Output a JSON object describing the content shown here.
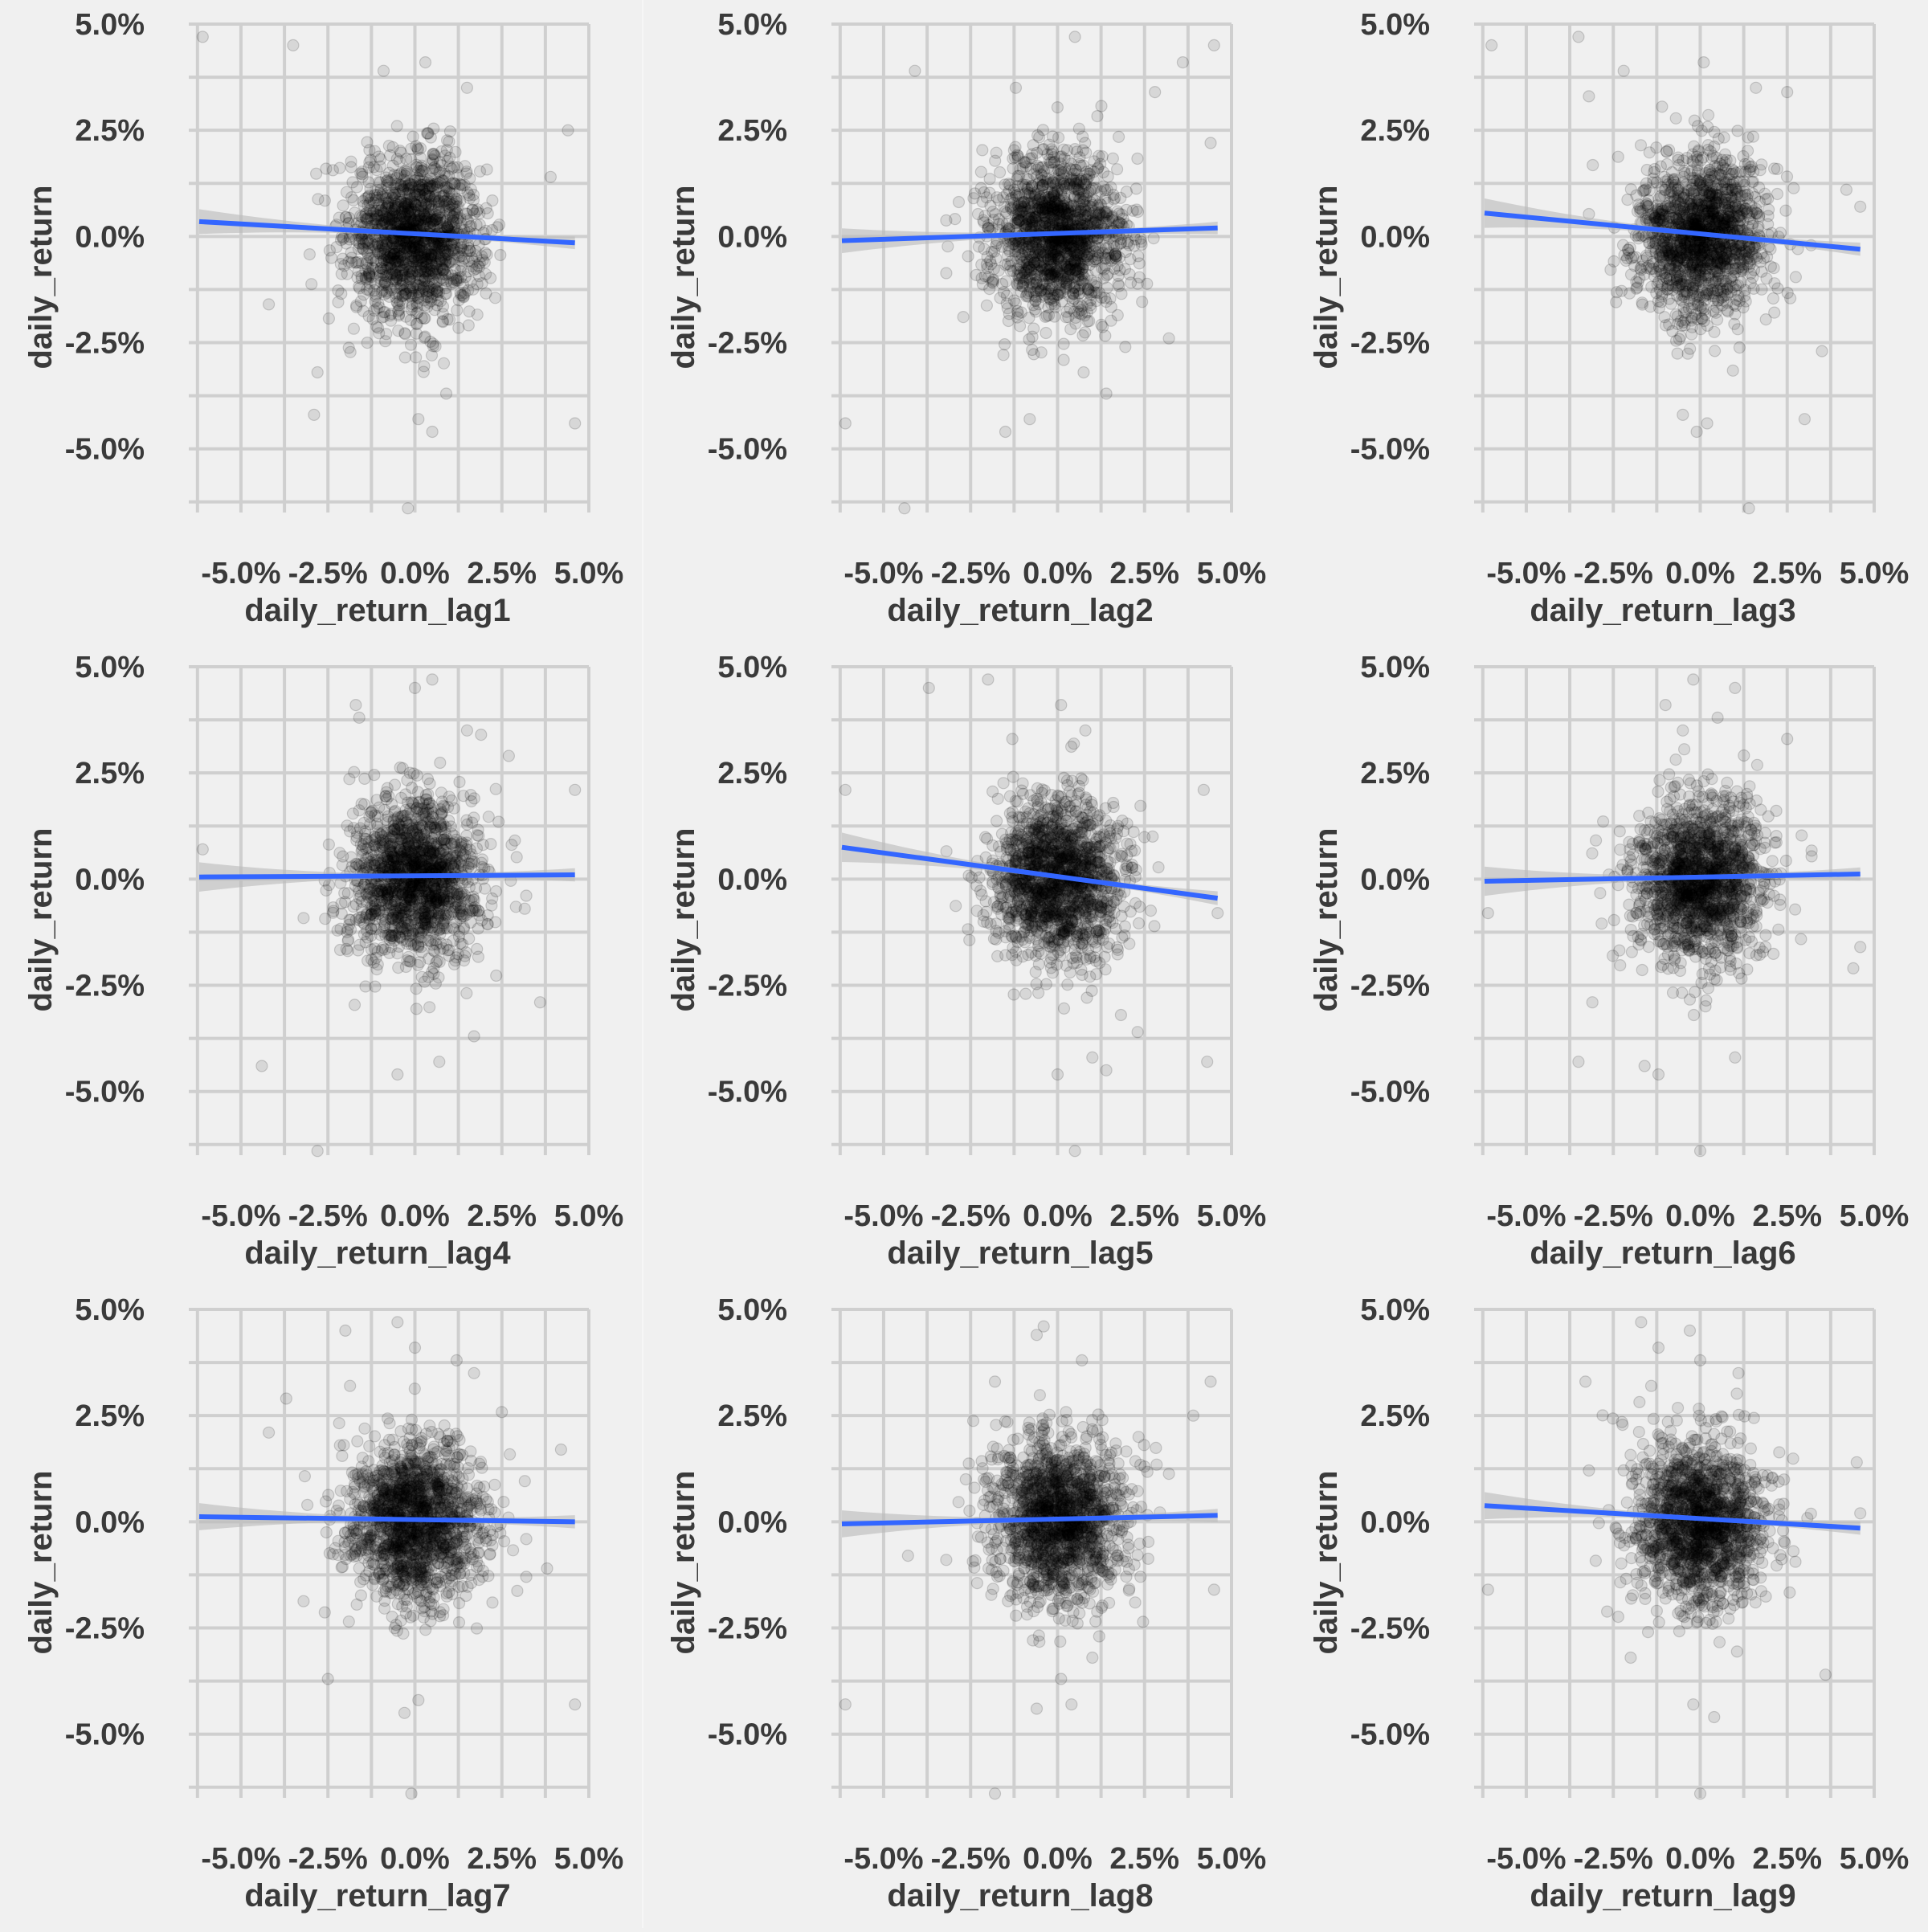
{
  "colors": {
    "background": "#f0f0f0",
    "grid": "#cfcfcf",
    "point": "#000000",
    "fit_line": "#3366ff",
    "confidence_band": "#b9b9b9",
    "text": "#3a3a3a"
  },
  "y_ticks": [
    "5.0%",
    "2.5%",
    "0.0%",
    "-2.5%",
    "-5.0%"
  ],
  "x_ticks": [
    "-5.0%",
    "-2.5%",
    "0.0%",
    "2.5%",
    "5.0%"
  ],
  "chart_data": [
    {
      "type": "scatter",
      "xlabel": "daily_return_lag1",
      "ylabel": "daily_return",
      "xlim": [
        -6.5,
        5.0
      ],
      "ylim": [
        -6.5,
        5.0
      ],
      "grid": true,
      "smooth": "lm",
      "fit_line": {
        "x": [
          -6.2,
          4.6
        ],
        "y": [
          0.35,
          -0.15
        ]
      },
      "band_halfwidth": [
        0.18,
        0.14
      ],
      "n_points": 1500,
      "spread": 0.95,
      "outliers": [
        [
          -6.1,
          4.7
        ],
        [
          -3.5,
          4.5
        ],
        [
          -0.9,
          3.9
        ],
        [
          0.3,
          4.1
        ],
        [
          1.5,
          3.5
        ],
        [
          -4.2,
          -1.6
        ],
        [
          -2.8,
          -3.2
        ],
        [
          0.9,
          -3.7
        ],
        [
          0.5,
          -4.6
        ],
        [
          0.1,
          -4.3
        ],
        [
          -0.2,
          -6.4
        ],
        [
          4.6,
          -4.4
        ],
        [
          3.9,
          1.4
        ],
        [
          4.4,
          2.5
        ],
        [
          -2.9,
          -4.2
        ]
      ]
    },
    {
      "type": "scatter",
      "xlabel": "daily_return_lag2",
      "ylabel": "daily_return",
      "xlim": [
        -6.5,
        5.0
      ],
      "ylim": [
        -6.5,
        5.0
      ],
      "grid": true,
      "smooth": "lm",
      "fit_line": {
        "x": [
          -6.2,
          4.6
        ],
        "y": [
          -0.1,
          0.2
        ]
      },
      "band_halfwidth": [
        0.18,
        0.14
      ],
      "n_points": 1500,
      "spread": 0.95,
      "outliers": [
        [
          -6.1,
          -4.4
        ],
        [
          -4.1,
          3.9
        ],
        [
          -4.4,
          -6.4
        ],
        [
          -1.5,
          -4.6
        ],
        [
          -0.8,
          -4.3
        ],
        [
          0.5,
          4.7
        ],
        [
          1.4,
          -3.7
        ],
        [
          3.6,
          4.1
        ],
        [
          4.5,
          4.5
        ],
        [
          4.4,
          2.2
        ],
        [
          3.2,
          -2.4
        ],
        [
          2.8,
          3.4
        ],
        [
          -1.2,
          3.5
        ]
      ]
    },
    {
      "type": "scatter",
      "xlabel": "daily_return_lag3",
      "ylabel": "daily_return",
      "xlim": [
        -6.5,
        5.0
      ],
      "ylim": [
        -6.5,
        5.0
      ],
      "grid": true,
      "smooth": "lm",
      "fit_line": {
        "x": [
          -6.2,
          4.6
        ],
        "y": [
          0.55,
          -0.3
        ]
      },
      "band_halfwidth": [
        0.22,
        0.15
      ],
      "n_points": 1500,
      "spread": 0.95,
      "outliers": [
        [
          -6.0,
          4.5
        ],
        [
          -3.5,
          4.7
        ],
        [
          -3.2,
          3.3
        ],
        [
          -2.2,
          3.9
        ],
        [
          0.1,
          4.1
        ],
        [
          1.6,
          3.5
        ],
        [
          2.5,
          3.4
        ],
        [
          -0.5,
          -4.2
        ],
        [
          0.2,
          -4.4
        ],
        [
          -0.1,
          -4.6
        ],
        [
          1.4,
          -6.4
        ],
        [
          3.5,
          -2.7
        ],
        [
          3.0,
          -4.3
        ],
        [
          4.6,
          0.7
        ],
        [
          4.2,
          1.1
        ]
      ]
    },
    {
      "type": "scatter",
      "xlabel": "daily_return_lag4",
      "ylabel": "daily_return",
      "xlim": [
        -6.5,
        5.0
      ],
      "ylim": [
        -6.5,
        5.0
      ],
      "grid": true,
      "smooth": "lm",
      "fit_line": {
        "x": [
          -6.2,
          4.6
        ],
        "y": [
          0.05,
          0.1
        ]
      },
      "band_halfwidth": [
        0.22,
        0.15
      ],
      "n_points": 1500,
      "spread": 0.95,
      "outliers": [
        [
          -6.1,
          0.7
        ],
        [
          -4.4,
          -4.4
        ],
        [
          -2.8,
          -6.4
        ],
        [
          -1.7,
          4.1
        ],
        [
          -1.6,
          3.8
        ],
        [
          0.0,
          4.5
        ],
        [
          0.5,
          4.7
        ],
        [
          1.5,
          3.5
        ],
        [
          1.9,
          3.4
        ],
        [
          2.7,
          2.9
        ],
        [
          3.6,
          -2.9
        ],
        [
          4.6,
          2.1
        ],
        [
          -0.5,
          -4.6
        ],
        [
          0.7,
          -4.3
        ],
        [
          1.7,
          -3.7
        ]
      ]
    },
    {
      "type": "scatter",
      "xlabel": "daily_return_lag5",
      "ylabel": "daily_return",
      "xlim": [
        -6.5,
        5.0
      ],
      "ylim": [
        -6.5,
        5.0
      ],
      "grid": true,
      "smooth": "lm",
      "fit_line": {
        "x": [
          -6.2,
          4.6
        ],
        "y": [
          0.75,
          -0.45
        ]
      },
      "band_halfwidth": [
        0.22,
        0.16
      ],
      "n_points": 1500,
      "spread": 0.95,
      "outliers": [
        [
          -6.1,
          2.1
        ],
        [
          -3.7,
          4.5
        ],
        [
          -2.0,
          4.7
        ],
        [
          -1.3,
          3.3
        ],
        [
          0.1,
          4.1
        ],
        [
          0.8,
          3.5
        ],
        [
          4.3,
          -4.3
        ],
        [
          4.6,
          -0.8
        ],
        [
          4.2,
          2.1
        ],
        [
          0.0,
          -4.6
        ],
        [
          0.5,
          -6.4
        ],
        [
          1.0,
          -4.2
        ],
        [
          1.4,
          -4.5
        ],
        [
          2.3,
          -3.6
        ]
      ]
    },
    {
      "type": "scatter",
      "xlabel": "daily_return_lag6",
      "ylabel": "daily_return",
      "xlim": [
        -6.5,
        5.0
      ],
      "ylim": [
        -6.5,
        5.0
      ],
      "grid": true,
      "smooth": "lm",
      "fit_line": {
        "x": [
          -6.2,
          4.6
        ],
        "y": [
          -0.05,
          0.12
        ]
      },
      "band_halfwidth": [
        0.22,
        0.15
      ],
      "n_points": 1500,
      "spread": 0.95,
      "outliers": [
        [
          -6.1,
          -0.8
        ],
        [
          -3.5,
          -4.3
        ],
        [
          -3.1,
          -2.9
        ],
        [
          -1.6,
          -4.4
        ],
        [
          -1.2,
          -4.6
        ],
        [
          -1.0,
          4.1
        ],
        [
          -0.5,
          3.5
        ],
        [
          -0.2,
          4.7
        ],
        [
          0.5,
          3.8
        ],
        [
          1.0,
          4.5
        ],
        [
          1.0,
          -4.2
        ],
        [
          0.0,
          -6.4
        ],
        [
          4.4,
          -2.1
        ],
        [
          4.6,
          -1.6
        ],
        [
          2.5,
          3.3
        ]
      ]
    },
    {
      "type": "scatter",
      "xlabel": "daily_return_lag7",
      "ylabel": "daily_return",
      "xlim": [
        -6.5,
        5.0
      ],
      "ylim": [
        -6.5,
        5.0
      ],
      "grid": true,
      "smooth": "lm",
      "fit_line": {
        "x": [
          -6.2,
          4.6
        ],
        "y": [
          0.12,
          0.0
        ]
      },
      "band_halfwidth": [
        0.2,
        0.15
      ],
      "n_points": 1500,
      "spread": 0.95,
      "outliers": [
        [
          -3.7,
          2.9
        ],
        [
          -4.2,
          2.1
        ],
        [
          -2.0,
          4.5
        ],
        [
          -0.5,
          4.7
        ],
        [
          0.0,
          4.1
        ],
        [
          1.2,
          3.8
        ],
        [
          1.7,
          3.5
        ],
        [
          -2.5,
          -3.7
        ],
        [
          -0.3,
          -4.5
        ],
        [
          0.1,
          -4.2
        ],
        [
          -0.1,
          -6.4
        ],
        [
          4.6,
          -4.3
        ],
        [
          4.2,
          1.7
        ],
        [
          3.8,
          -1.1
        ]
      ]
    },
    {
      "type": "scatter",
      "xlabel": "daily_return_lag8",
      "ylabel": "daily_return",
      "xlim": [
        -6.5,
        5.0
      ],
      "ylim": [
        -6.5,
        5.0
      ],
      "grid": true,
      "smooth": "lm",
      "fit_line": {
        "x": [
          -6.2,
          4.6
        ],
        "y": [
          -0.05,
          0.15
        ]
      },
      "band_halfwidth": [
        0.2,
        0.15
      ],
      "n_points": 1500,
      "spread": 0.95,
      "outliers": [
        [
          -6.1,
          -4.3
        ],
        [
          -4.3,
          -0.8
        ],
        [
          -1.8,
          3.3
        ],
        [
          -0.6,
          4.4
        ],
        [
          -0.4,
          4.6
        ],
        [
          0.7,
          3.8
        ],
        [
          4.4,
          3.3
        ],
        [
          3.9,
          2.5
        ],
        [
          -0.6,
          -4.4
        ],
        [
          0.1,
          -3.7
        ],
        [
          -1.8,
          -6.4
        ],
        [
          0.4,
          -4.3
        ],
        [
          1.0,
          -3.2
        ],
        [
          4.5,
          -1.6
        ]
      ]
    },
    {
      "type": "scatter",
      "xlabel": "daily_return_lag9",
      "ylabel": "daily_return",
      "xlim": [
        -6.5,
        5.0
      ],
      "ylim": [
        -6.5,
        5.0
      ],
      "grid": true,
      "smooth": "lm",
      "fit_line": {
        "x": [
          -6.2,
          4.6
        ],
        "y": [
          0.38,
          -0.15
        ]
      },
      "band_halfwidth": [
        0.2,
        0.15
      ],
      "n_points": 1500,
      "spread": 0.95,
      "outliers": [
        [
          -6.1,
          -1.6
        ],
        [
          -3.3,
          3.3
        ],
        [
          -1.7,
          4.7
        ],
        [
          -1.2,
          4.1
        ],
        [
          -0.3,
          4.5
        ],
        [
          0.0,
          3.8
        ],
        [
          1.1,
          3.5
        ],
        [
          -2.0,
          -3.2
        ],
        [
          -0.2,
          -4.3
        ],
        [
          0.4,
          -4.6
        ],
        [
          0.0,
          -6.4
        ],
        [
          3.6,
          -3.6
        ],
        [
          4.5,
          1.4
        ],
        [
          4.6,
          0.2
        ]
      ]
    }
  ]
}
